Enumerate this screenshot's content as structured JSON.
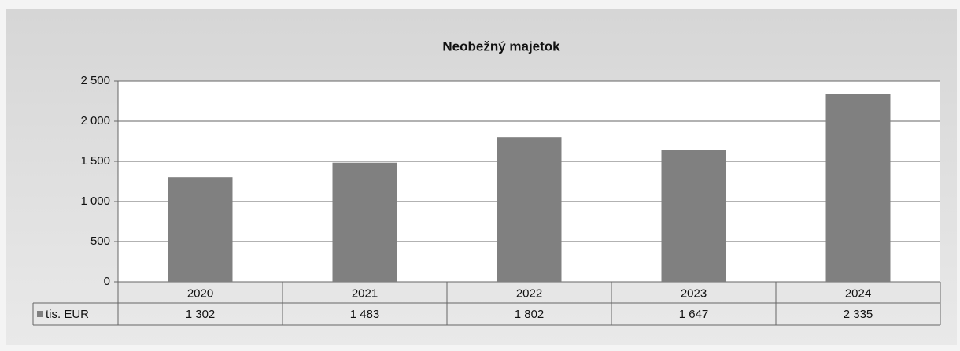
{
  "chart_data": {
    "type": "bar",
    "title": "Neobežný majetok",
    "categories": [
      "2020",
      "2021",
      "2022",
      "2023",
      "2024"
    ],
    "series": [
      {
        "name": "tis. EUR",
        "color": "#808080",
        "values": [
          1302,
          1483,
          1802,
          1647,
          2335
        ],
        "value_labels": [
          "1 302",
          "1 483",
          "1 802",
          "1 647",
          "2 335"
        ]
      }
    ],
    "ylim": [
      0,
      2500
    ],
    "yticks": [
      0,
      500,
      {
        "value": 1000,
        "label": "1 000"
      },
      {
        "value": 1500,
        "label": "1 500"
      },
      {
        "value": 2000,
        "label": "2 000"
      },
      {
        "value": 2500,
        "label": "2 500"
      }
    ],
    "grid": true
  }
}
